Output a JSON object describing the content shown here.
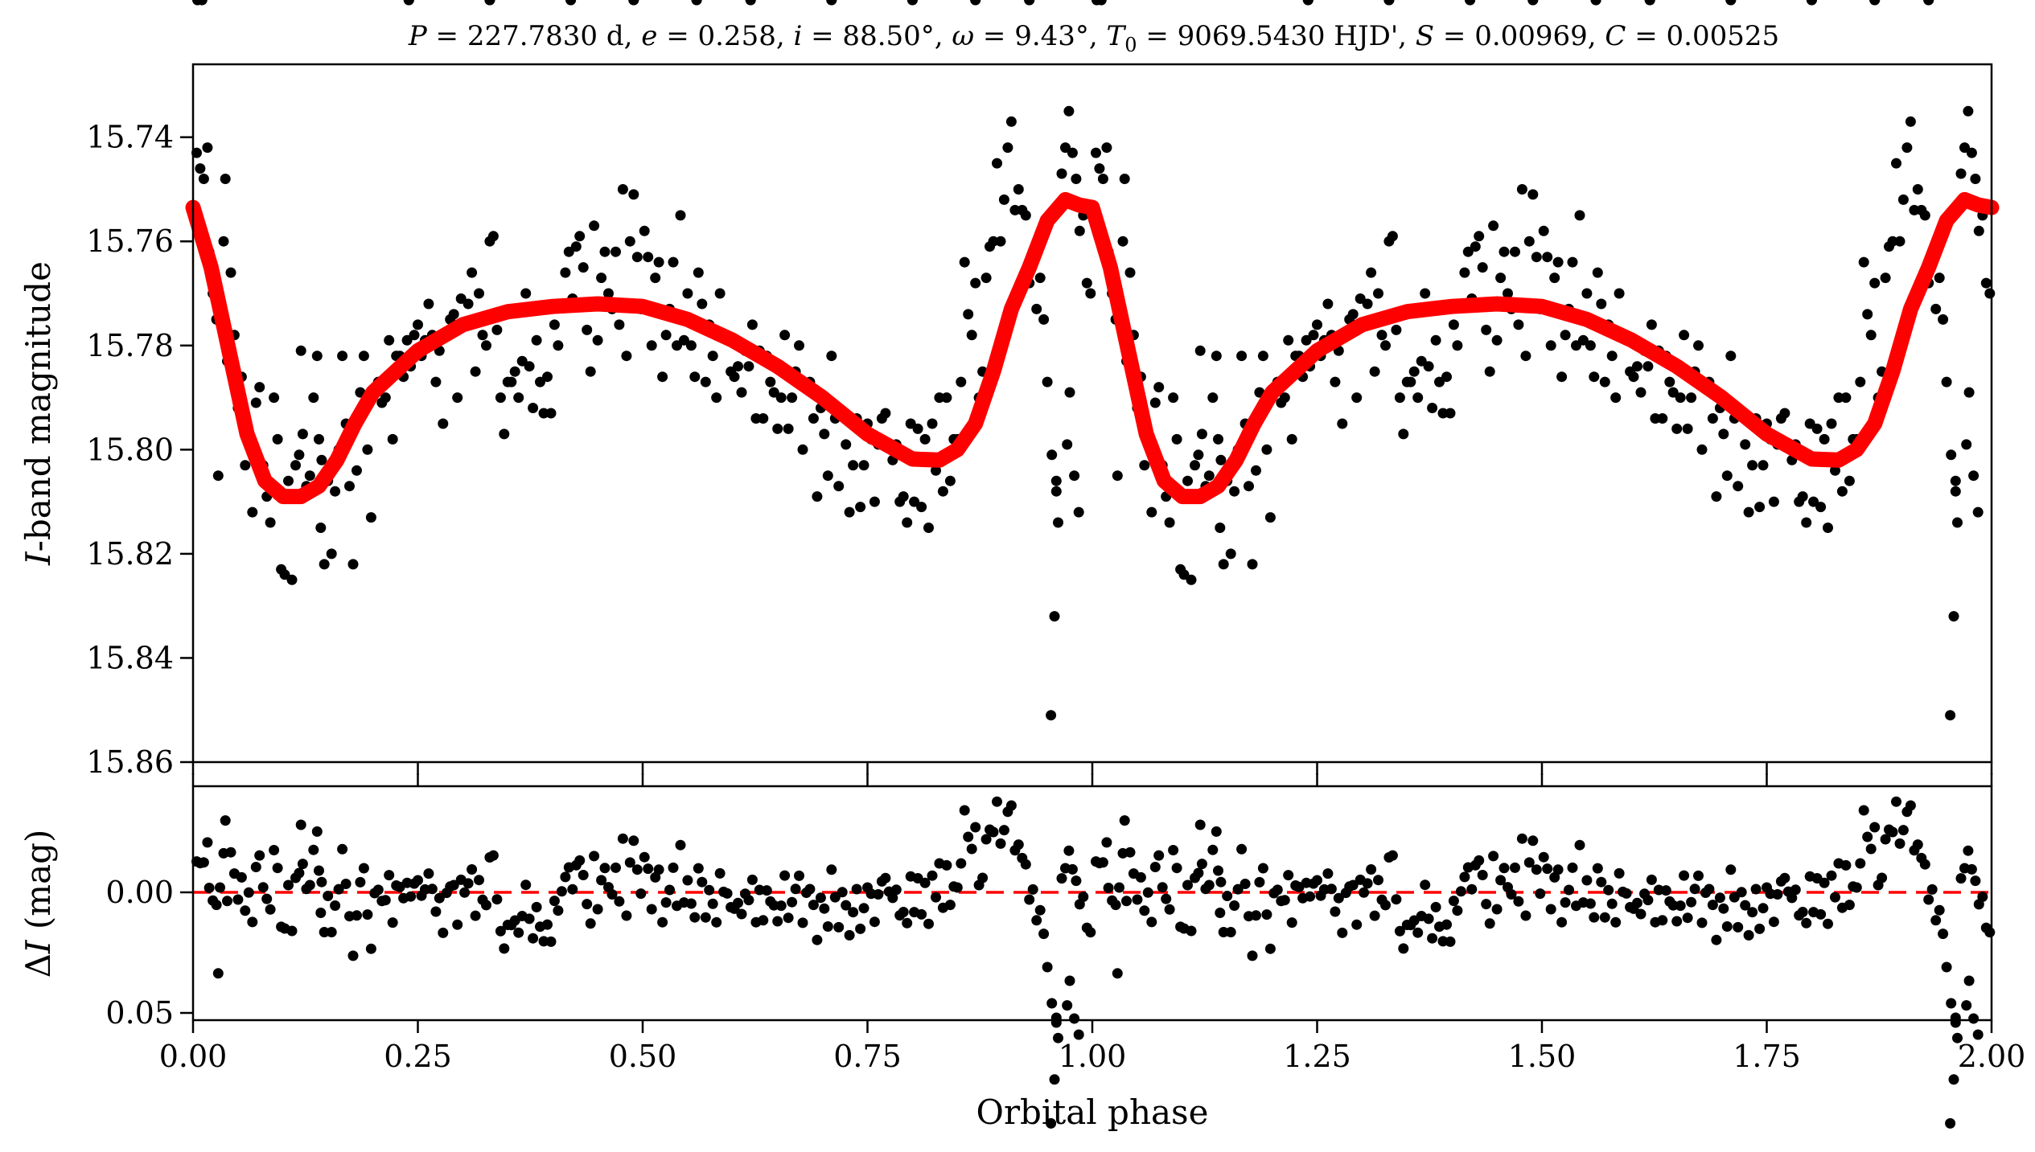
{
  "chart_data": [
    {
      "type": "scatter",
      "title": "P = 227.7830 d, e = 0.258, i = 88.50°, ω = 9.43°, T0 = 9069.5430 HJD', S = 0.00969, C = 0.00525",
      "title_parts": {
        "P_sym": "P",
        "P_val": " = 227.7830 d, ",
        "e_sym": "e",
        "e_val": " = 0.258, ",
        "i_sym": "i",
        "i_val": " = 88.50°, ",
        "w_sym": "ω",
        "w_val": " = 9.43°, ",
        "T_sym": "T",
        "T_sub": "0",
        "T_val": " = 9069.5430 HJD', ",
        "S_sym": "S",
        "S_val": " = 0.00969, ",
        "C_sym": "C",
        "C_val": " = 0.00525"
      },
      "xlabel": "",
      "ylabel": "I-band magnitude",
      "ylabel_parts": {
        "italic": "I",
        "rest": "-band magnitude"
      },
      "xlim": [
        0.0,
        2.0
      ],
      "ylim": [
        15.86,
        15.726
      ],
      "y_inverted": true,
      "xticks": [
        0.0,
        0.25,
        0.5,
        0.75,
        1.0,
        1.25,
        1.5,
        1.75,
        2.0
      ],
      "yticks": [
        "15.74",
        "15.76",
        "15.78",
        "15.80",
        "15.82",
        "15.84",
        "15.86"
      ],
      "yticks_values": [
        15.74,
        15.76,
        15.78,
        15.8,
        15.82,
        15.84,
        15.86
      ],
      "grid": false,
      "series": [
        {
          "kind": "points",
          "color": "#000000",
          "phase": [
            0.004,
            0.008,
            0.012,
            0.018,
            0.022,
            0.026,
            0.03,
            0.034,
            0.038,
            0.042,
            0.046,
            0.05,
            0.054,
            0.058,
            0.062,
            0.066,
            0.07,
            0.074,
            0.078,
            0.082,
            0.086,
            0.09,
            0.094,
            0.098,
            0.102,
            0.106,
            0.11,
            0.114,
            0.118,
            0.122,
            0.126,
            0.13,
            0.134,
            0.138,
            0.142,
            0.146,
            0.15,
            0.154,
            0.158,
            0.162,
            0.166,
            0.17,
            0.174,
            0.178,
            0.182,
            0.186,
            0.19,
            0.194,
            0.198,
            0.202,
            0.206,
            0.21,
            0.214,
            0.218,
            0.222,
            0.226,
            0.23,
            0.234,
            0.238,
            0.242,
            0.246,
            0.25,
            0.254,
            0.258,
            0.262,
            0.266,
            0.27,
            0.274,
            0.278,
            0.282,
            0.286,
            0.29,
            0.294,
            0.298,
            0.302,
            0.306,
            0.31,
            0.314,
            0.318,
            0.322,
            0.326,
            0.33,
            0.334,
            0.338,
            0.342,
            0.346,
            0.35,
            0.354,
            0.358,
            0.362,
            0.366,
            0.37,
            0.374,
            0.378,
            0.382,
            0.386,
            0.39,
            0.394,
            0.398,
            0.402,
            0.406,
            0.41,
            0.414,
            0.418,
            0.422,
            0.426,
            0.43,
            0.434,
            0.438,
            0.442,
            0.446,
            0.45,
            0.454,
            0.458,
            0.462,
            0.466,
            0.47,
            0.474,
            0.478,
            0.482,
            0.486,
            0.49,
            0.494,
            0.498,
            0.502,
            0.506,
            0.51,
            0.514,
            0.518,
            0.522,
            0.526,
            0.53,
            0.534,
            0.538,
            0.542,
            0.546,
            0.55,
            0.554,
            0.558,
            0.562,
            0.566,
            0.57,
            0.574,
            0.578,
            0.582,
            0.586,
            0.59,
            0.594,
            0.598,
            0.602,
            0.606,
            0.61,
            0.614,
            0.618,
            0.622,
            0.626,
            0.63,
            0.634,
            0.638,
            0.642,
            0.646,
            0.65,
            0.654,
            0.658,
            0.662,
            0.666,
            0.67,
            0.674,
            0.678,
            0.682,
            0.686,
            0.69,
            0.694,
            0.698,
            0.702,
            0.706,
            0.71,
            0.714,
            0.718,
            0.722,
            0.726,
            0.73,
            0.734,
            0.738,
            0.742,
            0.746,
            0.75,
            0.754,
            0.758,
            0.762,
            0.766,
            0.77,
            0.774,
            0.778,
            0.782,
            0.786,
            0.79,
            0.794,
            0.798,
            0.802,
            0.806,
            0.81,
            0.814,
            0.818,
            0.822,
            0.826,
            0.83,
            0.834,
            0.838,
            0.842,
            0.846,
            0.85,
            0.854,
            0.858,
            0.862,
            0.866,
            0.87,
            0.874,
            0.878,
            0.882,
            0.886,
            0.89,
            0.894,
            0.898,
            0.902,
            0.906,
            0.91,
            0.914,
            0.918,
            0.922,
            0.926,
            0.93,
            0.934,
            0.938,
            0.942,
            0.946,
            0.95,
            0.954,
            0.958,
            0.962,
            0.966,
            0.97,
            0.974,
            0.978,
            0.982,
            0.986,
            0.99,
            0.994,
            0.998,
            0.12,
            0.14,
            0.143,
            0.96,
            0.975,
            0.98,
            0.972,
            0.985,
            0.955,
            0.96,
            0.028,
            0.016,
            0.036,
            0.24,
            0.33,
            0.42,
            0.49,
            0.56,
            0.62,
            0.71,
            0.8,
            0.87,
            0.93,
            0.005,
            0.01
          ],
          "mag": [
            15.743,
            15.746,
            15.748,
            15.762,
            15.77,
            15.775,
            15.771,
            15.76,
            15.783,
            15.766,
            15.778,
            15.792,
            15.786,
            15.803,
            15.798,
            15.812,
            15.791,
            15.788,
            15.803,
            15.809,
            15.814,
            15.79,
            15.798,
            15.823,
            15.824,
            15.806,
            15.825,
            15.803,
            15.801,
            15.797,
            15.807,
            15.805,
            15.79,
            15.782,
            15.815,
            15.822,
            15.806,
            15.82,
            15.808,
            15.8,
            15.782,
            15.795,
            15.807,
            15.822,
            15.804,
            15.789,
            15.782,
            15.8,
            15.813,
            15.789,
            15.787,
            15.791,
            15.79,
            15.779,
            15.798,
            15.782,
            15.782,
            15.786,
            15.779,
            15.784,
            15.778,
            15.776,
            15.782,
            15.779,
            15.772,
            15.778,
            15.787,
            15.781,
            15.795,
            15.778,
            15.775,
            15.774,
            15.79,
            15.771,
            15.776,
            15.772,
            15.766,
            15.785,
            15.77,
            15.778,
            15.78,
            15.76,
            15.759,
            15.777,
            15.79,
            15.797,
            15.787,
            15.787,
            15.785,
            15.79,
            15.783,
            15.77,
            15.784,
            15.792,
            15.779,
            15.787,
            15.793,
            15.786,
            15.793,
            15.776,
            15.78,
            15.772,
            15.766,
            15.762,
            15.771,
            15.761,
            15.759,
            15.765,
            15.777,
            15.785,
            15.757,
            15.779,
            15.767,
            15.762,
            15.77,
            15.773,
            15.762,
            15.776,
            15.75,
            15.782,
            15.76,
            15.751,
            15.763,
            15.773,
            15.758,
            15.763,
            15.78,
            15.767,
            15.764,
            15.786,
            15.778,
            15.773,
            15.764,
            15.78,
            15.755,
            15.779,
            15.77,
            15.78,
            15.786,
            15.766,
            15.772,
            15.787,
            15.776,
            15.782,
            15.79,
            15.77,
            15.778,
            15.779,
            15.785,
            15.786,
            15.784,
            15.789,
            15.781,
            15.784,
            15.776,
            15.794,
            15.781,
            15.794,
            15.782,
            15.787,
            15.789,
            15.796,
            15.79,
            15.778,
            15.796,
            15.79,
            15.785,
            15.78,
            15.8,
            15.788,
            15.787,
            15.794,
            15.809,
            15.792,
            15.797,
            15.805,
            15.782,
            15.794,
            15.807,
            15.793,
            15.799,
            15.812,
            15.803,
            15.794,
            15.811,
            15.803,
            15.795,
            15.798,
            15.81,
            15.799,
            15.794,
            15.793,
            15.799,
            15.802,
            15.799,
            15.81,
            15.809,
            15.814,
            15.795,
            15.81,
            15.796,
            15.811,
            15.798,
            15.815,
            15.795,
            15.804,
            15.79,
            15.808,
            15.79,
            15.806,
            15.798,
            15.798,
            15.787,
            15.764,
            15.774,
            15.778,
            15.768,
            15.79,
            15.785,
            15.767,
            15.761,
            15.76,
            15.745,
            15.76,
            15.752,
            15.742,
            15.737,
            15.754,
            15.75,
            15.754,
            15.755,
            15.768,
            15.762,
            15.773,
            15.767,
            15.775,
            15.787,
            15.851,
            15.832,
            15.814,
            15.747,
            15.742,
            15.735,
            15.743,
            15.748,
            15.758,
            15.755,
            15.768,
            15.77,
            15.781,
            15.798,
            15.802,
            15.806,
            15.789,
            15.805,
            15.799,
            15.812,
            15.801,
            15.808,
            15.805,
            15.742,
            15.748
          ],
          "periodic_repeat": 1.0
        },
        {
          "kind": "model",
          "color": "#ff0000",
          "phase_model": [
            0.0,
            0.02,
            0.04,
            0.06,
            0.08,
            0.1,
            0.12,
            0.14,
            0.16,
            0.18,
            0.2,
            0.25,
            0.3,
            0.35,
            0.4,
            0.45,
            0.5,
            0.55,
            0.6,
            0.65,
            0.7,
            0.75,
            0.8,
            0.83,
            0.85,
            0.87,
            0.89,
            0.91,
            0.93,
            0.95,
            0.97,
            0.985,
            1.0
          ],
          "mag_model": [
            15.7535,
            15.765,
            15.781,
            15.797,
            15.806,
            15.809,
            15.809,
            15.807,
            15.802,
            15.795,
            15.789,
            15.781,
            15.776,
            15.7735,
            15.7725,
            15.772,
            15.7725,
            15.775,
            15.779,
            15.784,
            15.79,
            15.797,
            15.8018,
            15.802,
            15.8,
            15.795,
            15.785,
            15.773,
            15.765,
            15.756,
            15.752,
            15.753,
            15.7535
          ],
          "periodic_repeat": 1.0
        }
      ]
    },
    {
      "type": "scatter",
      "xlabel": "Orbital phase",
      "ylabel": "ΔI (mag)",
      "ylabel_parts": {
        "delta": "Δ",
        "italic": "I",
        "rest": " (mag)"
      },
      "xlim": [
        0.0,
        2.0
      ],
      "ylim": [
        0.053,
        -0.044
      ],
      "y_inverted": true,
      "xticks": [
        "0.00",
        "0.25",
        "0.50",
        "0.75",
        "1.00",
        "1.25",
        "1.50",
        "1.75",
        "2.00"
      ],
      "xticks_values": [
        0.0,
        0.25,
        0.5,
        0.75,
        1.0,
        1.25,
        1.5,
        1.75,
        2.0
      ],
      "yticks": [
        "0.00",
        "0.05"
      ],
      "yticks_values": [
        0.0,
        0.05
      ],
      "reference_line": {
        "y": 0.0,
        "color": "#ff0000",
        "style": "dashed"
      },
      "grid": false
    }
  ]
}
